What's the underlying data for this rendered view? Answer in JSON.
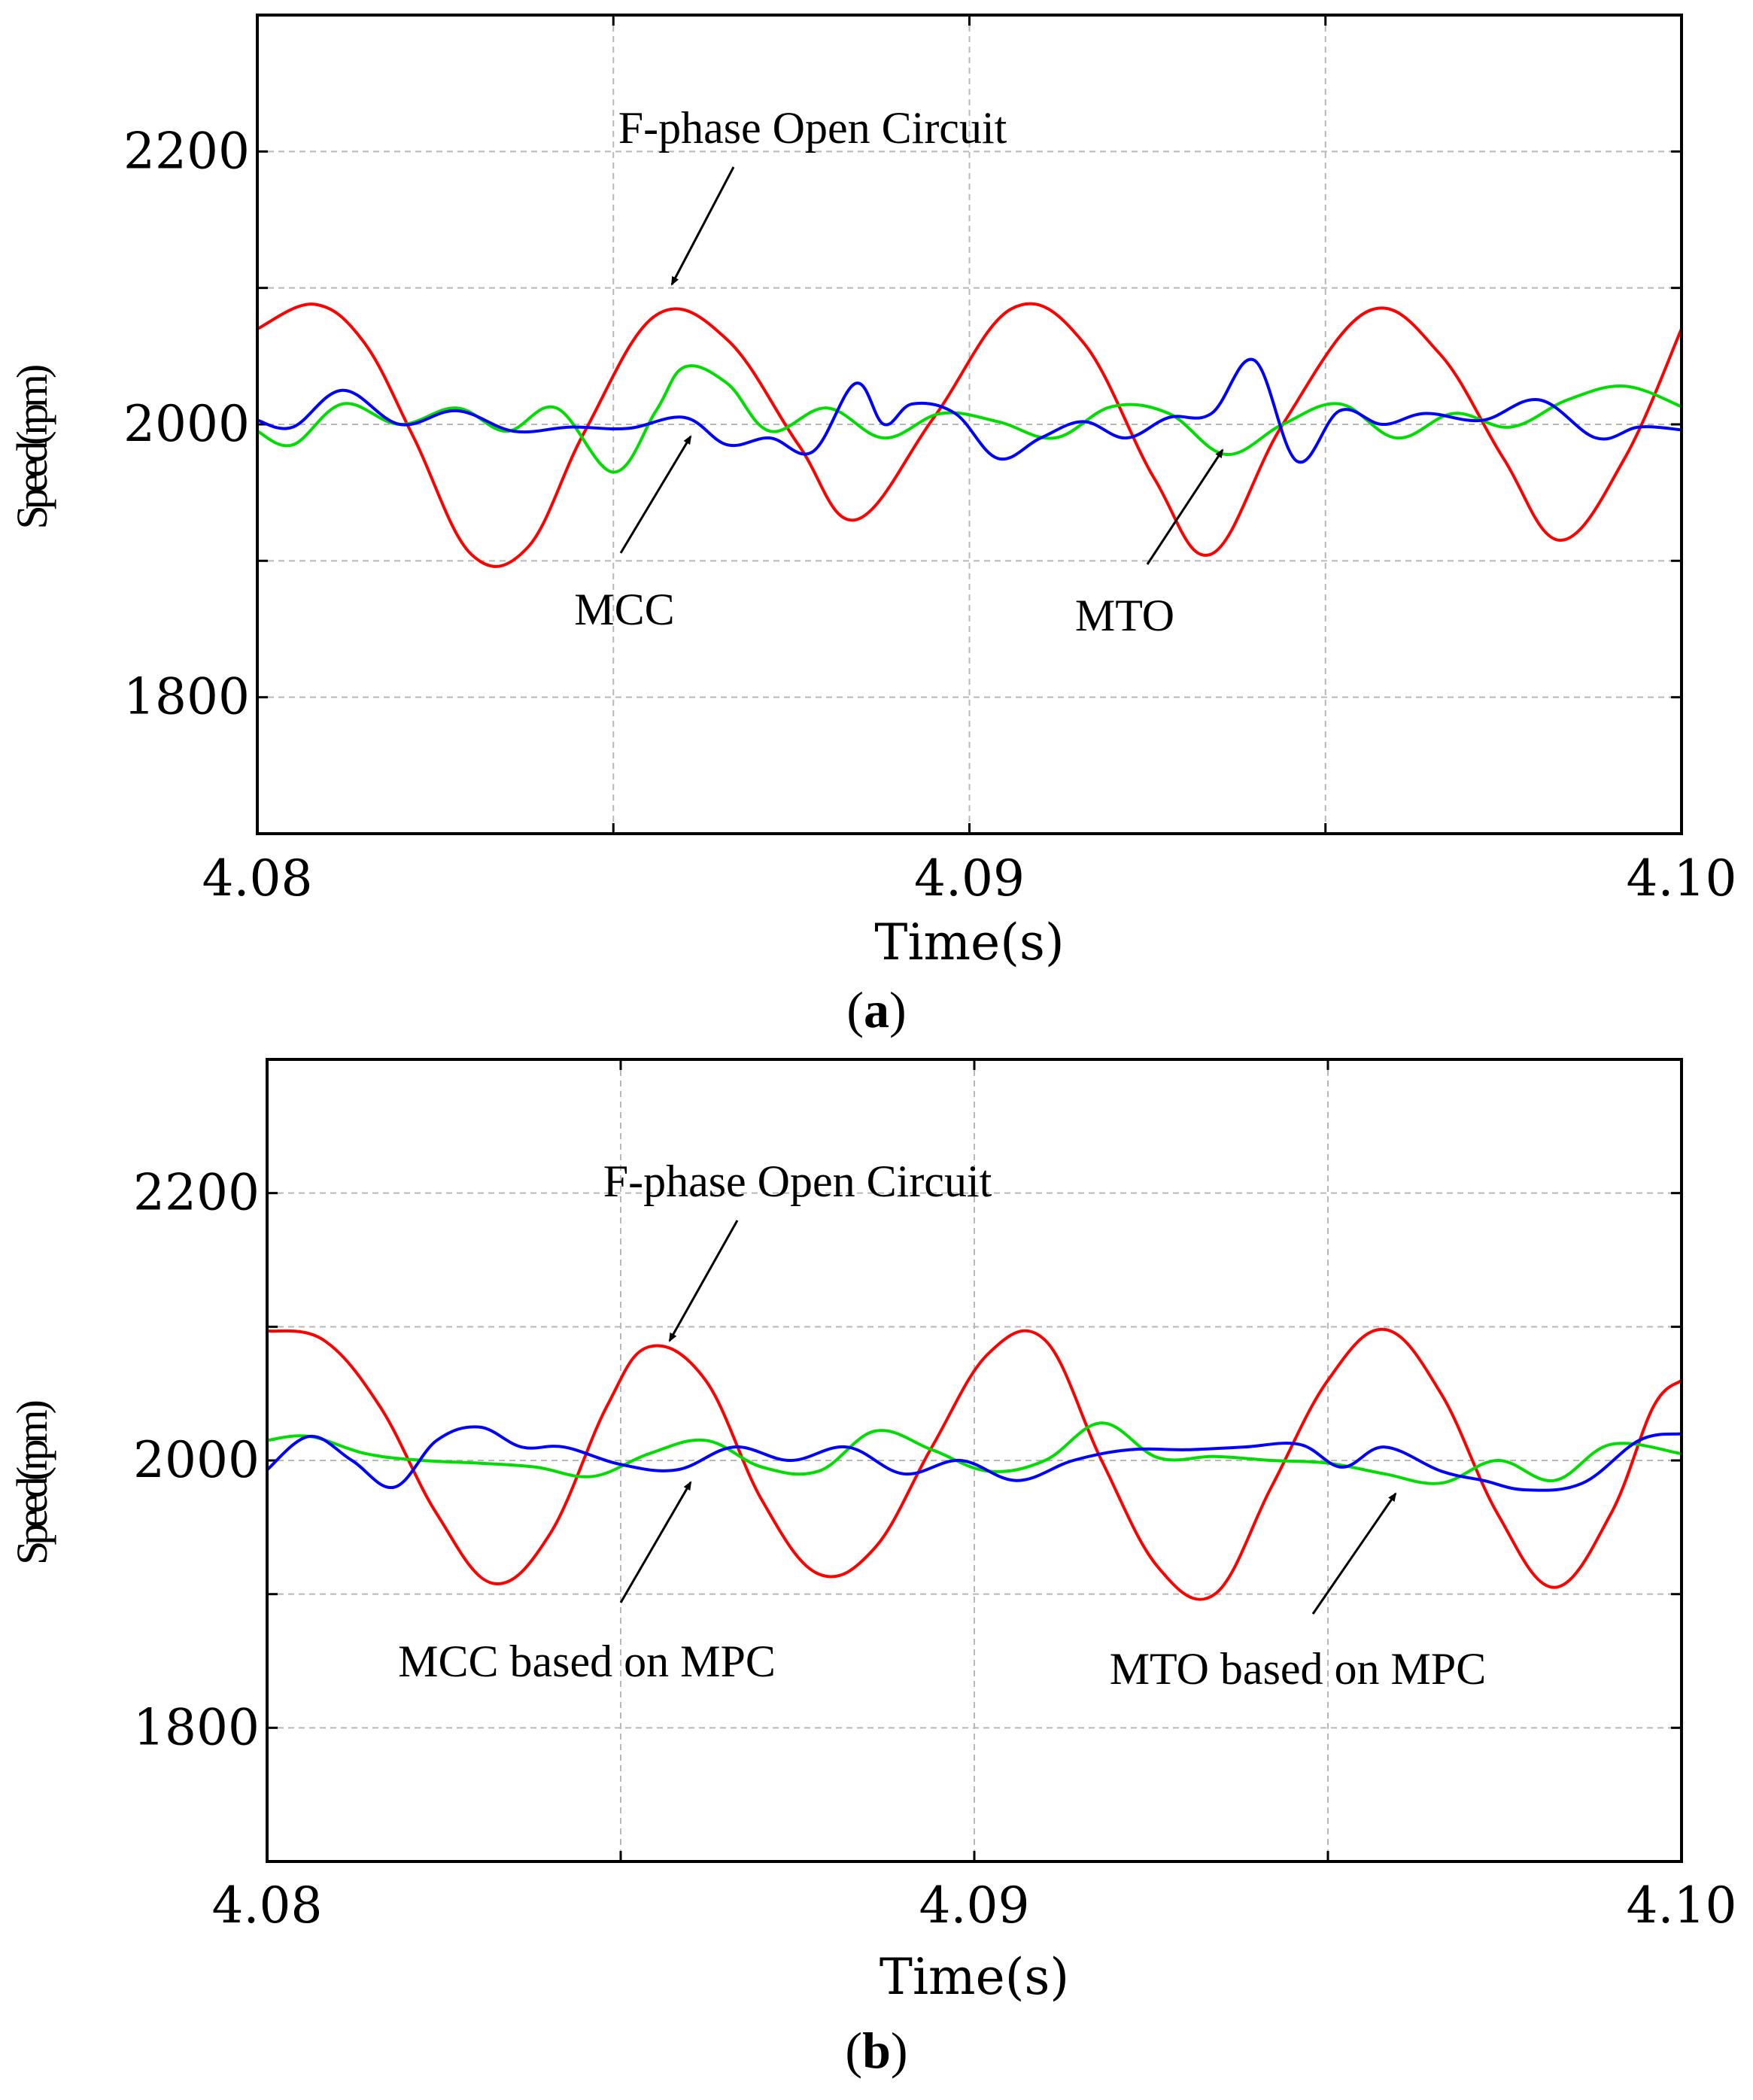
{
  "chart_data": [
    {
      "type": "line",
      "panel_label": "a",
      "xlabel": "Time(s)",
      "ylabel": "Speed(rpm)",
      "xlim": [
        4.08,
        4.1
      ],
      "ylim": [
        1700,
        2300
      ],
      "xticks": [
        "4.08",
        "4.09",
        "4.10"
      ],
      "yticks": [
        "1800",
        "2000",
        "2200"
      ],
      "grid": true,
      "annotations": [
        "F-phase Open Circuit",
        "MCC",
        "MTO"
      ],
      "series": [
        {
          "name": "F-phase Open Circuit",
          "color": "#ff0000",
          "x": [
            4.08,
            4.0808,
            4.0815,
            4.0822,
            4.083,
            4.0838,
            4.0846,
            4.0856,
            4.0866,
            4.0876,
            4.0884,
            4.0895,
            4.0906,
            4.0916,
            4.0926,
            4.0934,
            4.0944,
            4.0956,
            4.0966,
            4.0975,
            4.0983,
            4.0992,
            4.1
          ],
          "y": [
            2070,
            2088,
            2060,
            1990,
            1905,
            1910,
            1995,
            2080,
            2062,
            1985,
            1930,
            2005,
            2085,
            2060,
            1960,
            1905,
            2000,
            2083,
            2052,
            1975,
            1915,
            1975,
            2070
          ]
        },
        {
          "name": "MCC",
          "color": "#00dd00",
          "x": [
            4.08,
            4.0805,
            4.0812,
            4.082,
            4.0828,
            4.0835,
            4.0842,
            4.085,
            4.0856,
            4.086,
            4.0866,
            4.0872,
            4.088,
            4.0888,
            4.0896,
            4.0904,
            4.0912,
            4.092,
            4.0928,
            4.0936,
            4.0944,
            4.0952,
            4.096,
            4.0968,
            4.0976,
            4.0984,
            4.0992,
            4.1
          ],
          "y": [
            1995,
            1985,
            2015,
            2000,
            2012,
            1995,
            2012,
            1965,
            2010,
            2042,
            2030,
            1995,
            2012,
            1990,
            2008,
            2002,
            1990,
            2013,
            2008,
            1978,
            2000,
            2015,
            1990,
            2008,
            1998,
            2018,
            2028,
            2013
          ]
        },
        {
          "name": "MTO",
          "color": "#0000ff",
          "x": [
            4.08,
            4.0805,
            4.0812,
            4.082,
            4.0828,
            4.0836,
            4.0844,
            4.0852,
            4.086,
            4.0866,
            4.0872,
            4.0878,
            4.0884,
            4.0888,
            4.0892,
            4.0898,
            4.0904,
            4.091,
            4.0916,
            4.0922,
            4.0928,
            4.0934,
            4.094,
            4.0946,
            4.0952,
            4.0958,
            4.0964,
            4.0972,
            4.098,
            4.0988,
            4.0994,
            4.1
          ],
          "y": [
            2003,
            1998,
            2025,
            2000,
            2010,
            1995,
            1998,
            1997,
            2005,
            1985,
            1990,
            1980,
            2030,
            2000,
            2015,
            2008,
            1975,
            1990,
            2002,
            1990,
            2005,
            2008,
            2047,
            1973,
            2010,
            2000,
            2008,
            2003,
            2018,
            1990,
            1998,
            1996
          ]
        }
      ]
    },
    {
      "type": "line",
      "panel_label": "b",
      "xlabel": "Time(s)",
      "ylabel": "Speed(rpm)",
      "xlim": [
        4.08,
        4.1
      ],
      "ylim": [
        1700,
        2300
      ],
      "xticks": [
        "4.08",
        "4.09",
        "4.10"
      ],
      "yticks": [
        "1800",
        "2000",
        "2200"
      ],
      "grid": true,
      "annotations": [
        "F-phase Open Circuit",
        "MCC based on MPC",
        "MTO based on MPC"
      ],
      "series": [
        {
          "name": "F-phase Open Circuit",
          "color": "#ff0000",
          "x": [
            4.08,
            4.0808,
            4.0816,
            4.0824,
            4.0832,
            4.084,
            4.0848,
            4.0854,
            4.0862,
            4.087,
            4.0878,
            4.0886,
            4.0894,
            4.0902,
            4.091,
            4.0918,
            4.0926,
            4.0934,
            4.0942,
            4.095,
            4.0958,
            4.0966,
            4.0974,
            4.0982,
            4.099,
            4.0996,
            4.1
          ],
          "y": [
            2097,
            2090,
            2040,
            1960,
            1908,
            1945,
            2040,
            2085,
            2060,
            1970,
            1915,
            1935,
            2010,
            2080,
            2090,
            2000,
            1920,
            1900,
            1980,
            2060,
            2098,
            2050,
            1960,
            1905,
            1960,
            2040,
            2060
          ]
        },
        {
          "name": "MCC based on MPC",
          "color": "#00dd00",
          "x": [
            4.08,
            4.0806,
            4.0814,
            4.0822,
            4.083,
            4.0838,
            4.0846,
            4.0854,
            4.0862,
            4.087,
            4.0878,
            4.0886,
            4.0894,
            4.0902,
            4.091,
            4.0918,
            4.0926,
            4.0934,
            4.0942,
            4.095,
            4.0958,
            4.0966,
            4.0974,
            4.0982,
            4.099,
            4.1
          ],
          "y": [
            2015,
            2018,
            2005,
            2000,
            1998,
            1995,
            1988,
            2005,
            2015,
            1995,
            1992,
            2022,
            2008,
            1992,
            2000,
            2028,
            2002,
            2003,
            2000,
            1998,
            1990,
            1983,
            2000,
            1985,
            2012,
            2005
          ]
        },
        {
          "name": "MTO based on MPC",
          "color": "#0000ff",
          "x": [
            4.08,
            4.0806,
            4.0812,
            4.0818,
            4.0824,
            4.083,
            4.0836,
            4.0842,
            4.085,
            4.0858,
            4.0866,
            4.0874,
            4.0882,
            4.089,
            4.0898,
            4.0906,
            4.0914,
            4.0922,
            4.093,
            4.0938,
            4.0946,
            4.0952,
            4.0958,
            4.0966,
            4.0972,
            4.0978,
            4.0986,
            4.0994,
            4.1
          ],
          "y": [
            1993,
            2018,
            2000,
            1980,
            2015,
            2025,
            2010,
            2010,
            1997,
            1993,
            2010,
            2000,
            2010,
            1990,
            2000,
            1985,
            2000,
            2008,
            2008,
            2010,
            2012,
            1995,
            2010,
            1992,
            1985,
            1978,
            1983,
            2015,
            2020
          ]
        }
      ]
    }
  ]
}
